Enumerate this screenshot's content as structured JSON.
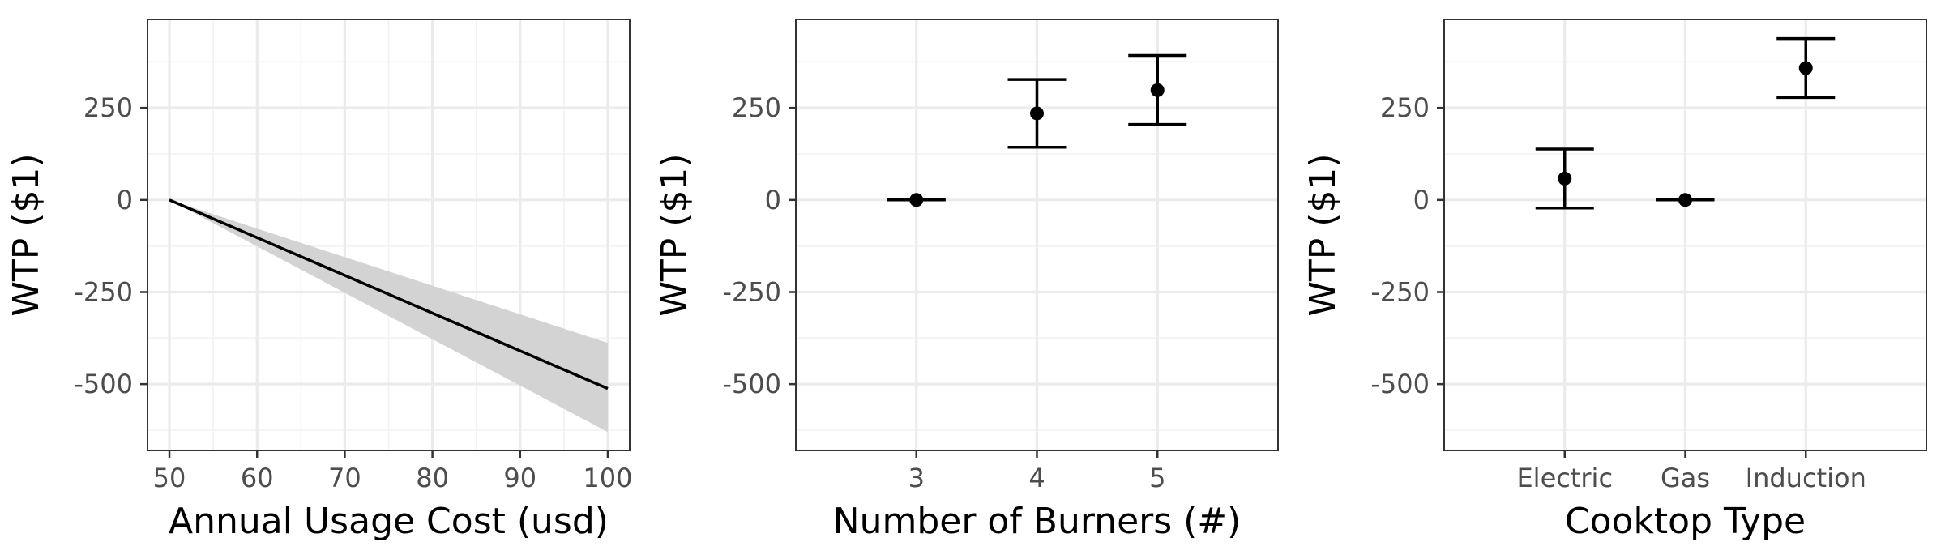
{
  "chart_data": [
    {
      "type": "line",
      "xlabel": "Annual Usage Cost (usd)",
      "ylabel": "WTP ($1)",
      "xlim": [
        47.5,
        102.5
      ],
      "ylim": [
        -680,
        490
      ],
      "x_ticks": [
        50,
        60,
        70,
        80,
        90,
        100
      ],
      "x_tick_labels": [
        "50",
        "60",
        "70",
        "80",
        "90",
        "100"
      ],
      "y_ticks": [
        -500,
        -250,
        0,
        250
      ],
      "y_tick_labels": [
        "-500",
        "-250",
        "0",
        "250"
      ],
      "line": {
        "x": [
          50,
          100
        ],
        "y": [
          0,
          -512
        ]
      },
      "ribbon": {
        "x": [
          50,
          100
        ],
        "lower": [
          0,
          -630
        ],
        "upper": [
          0,
          -388
        ]
      },
      "grid": true,
      "colors": {
        "line": "#000000",
        "ribbon": "#d3d3d3"
      }
    },
    {
      "type": "scatter",
      "xlabel": "Number of Burners (#)",
      "ylabel": "WTP ($1)",
      "ylim": [
        -680,
        490
      ],
      "categories": [
        "3",
        "4",
        "5"
      ],
      "values": [
        0,
        235,
        298
      ],
      "lower": [
        0,
        143,
        205
      ],
      "upper": [
        0,
        327,
        392
      ],
      "y_ticks": [
        -500,
        -250,
        0,
        250
      ],
      "y_tick_labels": [
        "-500",
        "-250",
        "0",
        "250"
      ],
      "grid": true,
      "colors": {
        "point": "#000000"
      }
    },
    {
      "type": "scatter",
      "xlabel": "Cooktop Type",
      "ylabel": "WTP ($1)",
      "ylim": [
        -680,
        490
      ],
      "categories": [
        "Electric",
        "Gas",
        "Induction"
      ],
      "values": [
        58,
        0,
        358
      ],
      "lower": [
        -22,
        0,
        278
      ],
      "upper": [
        138,
        0,
        438
      ],
      "y_ticks": [
        -500,
        -250,
        0,
        250
      ],
      "y_tick_labels": [
        "-500",
        "-250",
        "0",
        "250"
      ],
      "grid": true,
      "colors": {
        "point": "#000000"
      }
    }
  ]
}
